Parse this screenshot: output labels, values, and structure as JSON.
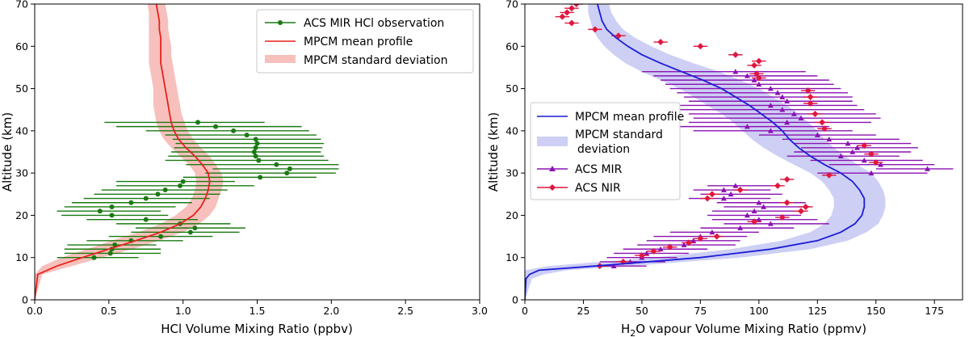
{
  "chart_data": [
    {
      "type": "line",
      "xlabel": "HCl Volume Mixing Ratio (ppbv)",
      "ylabel": "Altitude (km)",
      "xlim": [
        0,
        3.0
      ],
      "ylim": [
        0,
        70
      ],
      "xticks": [
        "0.0",
        "0.5",
        "1.0",
        "1.5",
        "2.0",
        "2.5",
        "3.0"
      ],
      "yticks": [
        "0",
        "10",
        "20",
        "30",
        "40",
        "50",
        "60",
        "70"
      ],
      "legend": {
        "position": "top-right",
        "entries": [
          "ACS MIR HCl observation",
          "MPCM mean profile",
          "MPCM standard deviation"
        ]
      },
      "colors": {
        "observation": "#1a7a12",
        "mean": "#e8201a",
        "band": "#f7c0bd"
      },
      "mean_profile": {
        "y": [
          0,
          6,
          8,
          10,
          12,
          14,
          16,
          18,
          20,
          22,
          24,
          26,
          28,
          30,
          32,
          34,
          36,
          38,
          40,
          42,
          44,
          46,
          48,
          50,
          52,
          54,
          56,
          58,
          60,
          62,
          64,
          66,
          68,
          70
        ],
        "x": [
          0.0,
          0.02,
          0.15,
          0.32,
          0.5,
          0.68,
          0.85,
          0.98,
          1.07,
          1.12,
          1.15,
          1.17,
          1.18,
          1.17,
          1.13,
          1.08,
          1.02,
          0.97,
          0.94,
          0.92,
          0.91,
          0.9,
          0.89,
          0.88,
          0.87,
          0.86,
          0.85,
          0.85,
          0.85,
          0.85,
          0.84,
          0.84,
          0.83,
          0.82
        ]
      },
      "band_low": [
        0.0,
        0.0,
        0.05,
        0.18,
        0.35,
        0.52,
        0.7,
        0.85,
        0.95,
        1.02,
        1.06,
        1.08,
        1.09,
        1.08,
        1.04,
        0.98,
        0.92,
        0.87,
        0.84,
        0.82,
        0.81,
        0.8,
        0.8,
        0.8,
        0.79,
        0.78,
        0.77,
        0.77,
        0.77,
        0.77,
        0.77,
        0.77,
        0.77,
        0.76
      ],
      "band_high": [
        0.0,
        0.05,
        0.25,
        0.45,
        0.66,
        0.84,
        1.0,
        1.11,
        1.18,
        1.22,
        1.24,
        1.26,
        1.27,
        1.26,
        1.22,
        1.18,
        1.12,
        1.07,
        1.03,
        1.01,
        0.99,
        0.98,
        0.97,
        0.96,
        0.95,
        0.94,
        0.93,
        0.92,
        0.92,
        0.91,
        0.9,
        0.9,
        0.89,
        0.88
      ],
      "observations": [
        {
          "y": 42,
          "x": 1.1,
          "lo": 0.47,
          "hi": 1.55
        },
        {
          "y": 41,
          "x": 1.22,
          "lo": 0.55,
          "hi": 1.8
        },
        {
          "y": 40,
          "x": 1.34,
          "lo": 0.75,
          "hi": 1.85
        },
        {
          "y": 39,
          "x": 1.43,
          "lo": 0.88,
          "hi": 1.9
        },
        {
          "y": 38,
          "x": 1.49,
          "lo": 0.93,
          "hi": 1.93
        },
        {
          "y": 37,
          "x": 1.5,
          "lo": 0.95,
          "hi": 1.95
        },
        {
          "y": 36,
          "x": 1.49,
          "lo": 0.94,
          "hi": 1.94
        },
        {
          "y": 35,
          "x": 1.48,
          "lo": 0.92,
          "hi": 1.93
        },
        {
          "y": 34,
          "x": 1.49,
          "lo": 0.9,
          "hi": 1.95
        },
        {
          "y": 33,
          "x": 1.51,
          "lo": 0.88,
          "hi": 1.98
        },
        {
          "y": 32,
          "x": 1.63,
          "lo": 1.02,
          "hi": 2.05
        },
        {
          "y": 31,
          "x": 1.72,
          "lo": 1.2,
          "hi": 2.05
        },
        {
          "y": 30,
          "x": 1.7,
          "lo": 1.15,
          "hi": 2.03
        },
        {
          "y": 29,
          "x": 1.52,
          "lo": 1.0,
          "hi": 1.9
        },
        {
          "y": 28,
          "x": 1.0,
          "lo": 0.55,
          "hi": 1.35
        },
        {
          "y": 27,
          "x": 0.98,
          "lo": 0.55,
          "hi": 1.48
        },
        {
          "y": 26,
          "x": 0.88,
          "lo": 0.45,
          "hi": 1.3
        },
        {
          "y": 25,
          "x": 0.83,
          "lo": 0.4,
          "hi": 1.25
        },
        {
          "y": 24,
          "x": 0.75,
          "lo": 0.33,
          "hi": 1.18
        },
        {
          "y": 23,
          "x": 0.65,
          "lo": 0.25,
          "hi": 1.06
        },
        {
          "y": 22,
          "x": 0.52,
          "lo": 0.2,
          "hi": 0.95
        },
        {
          "y": 21,
          "x": 0.44,
          "lo": 0.15,
          "hi": 0.85
        },
        {
          "y": 20,
          "x": 0.52,
          "lo": 0.18,
          "hi": 0.9
        },
        {
          "y": 19,
          "x": 0.75,
          "lo": 0.35,
          "hi": 1.1
        },
        {
          "y": 18,
          "x": 0.98,
          "lo": 0.55,
          "hi": 1.32
        },
        {
          "y": 17,
          "x": 1.08,
          "lo": 0.68,
          "hi": 1.42
        },
        {
          "y": 16,
          "x": 1.05,
          "lo": 0.65,
          "hi": 1.38
        },
        {
          "y": 15,
          "x": 0.85,
          "lo": 0.5,
          "hi": 1.2
        },
        {
          "y": 14,
          "x": 0.65,
          "lo": 0.35,
          "hi": 1.0
        },
        {
          "y": 13,
          "x": 0.54,
          "lo": 0.22,
          "hi": 0.82
        },
        {
          "y": 12,
          "x": 0.52,
          "lo": 0.2,
          "hi": 0.85
        },
        {
          "y": 11,
          "x": 0.51,
          "lo": 0.2,
          "hi": 0.85
        },
        {
          "y": 10,
          "x": 0.4,
          "lo": 0.15,
          "hi": 0.7
        }
      ]
    },
    {
      "type": "line",
      "xlabel_prefix": "H",
      "xlabel_sub": "2",
      "xlabel_suffix": "O vapour Volume Mixing Ratio (ppmv)",
      "ylabel": "Altitude (km)",
      "xlim": [
        0,
        187
      ],
      "ylim": [
        0,
        70
      ],
      "xticks": [
        "0",
        "25",
        "50",
        "75",
        "100",
        "125",
        "150",
        "175"
      ],
      "yticks": [
        "0",
        "10",
        "20",
        "30",
        "40",
        "50",
        "60",
        "70"
      ],
      "legend": {
        "position": "center-left",
        "entries": [
          "MPCM mean profile",
          "MPCM standard",
          "deviation",
          "ACS MIR",
          "ACS NIR"
        ]
      },
      "colors": {
        "mean": "#1c1cd6",
        "band": "#cdcff5",
        "mir": "#8b12b3",
        "nir": "#e0173f"
      },
      "mean_profile": {
        "y": [
          0,
          5,
          6,
          7,
          8,
          10,
          12,
          14,
          16,
          18,
          20,
          22,
          24,
          26,
          28,
          30,
          32,
          34,
          36,
          38,
          40,
          42,
          44,
          46,
          48,
          50,
          52,
          54,
          56,
          58,
          60,
          62,
          64,
          66,
          68,
          70
        ],
        "x": [
          0,
          0.5,
          2,
          6,
          30,
          75,
          105,
          125,
          135,
          141,
          144,
          145,
          145,
          143,
          140,
          135,
          128,
          122,
          117,
          113,
          110,
          106,
          101,
          96,
          90,
          84,
          76,
          67,
          58,
          50,
          44,
          39,
          35,
          33,
          32,
          31
        ]
      },
      "band_low": [
        0,
        0,
        0,
        0,
        10,
        55,
        88,
        110,
        122,
        128,
        131,
        132,
        132,
        130,
        127,
        122,
        115,
        108,
        102,
        97,
        93,
        89,
        84,
        78,
        72,
        66,
        58,
        50,
        43,
        38,
        34,
        31,
        29,
        28,
        27,
        27
      ],
      "band_high": [
        0,
        3,
        8,
        18,
        45,
        92,
        122,
        138,
        146,
        151,
        153,
        154,
        154,
        153,
        151,
        148,
        142,
        137,
        132,
        128,
        125,
        121,
        117,
        112,
        106,
        100,
        92,
        83,
        72,
        62,
        54,
        47,
        42,
        39,
        37,
        36
      ],
      "mir_observations": [
        {
          "y": 54,
          "x": 90,
          "lo": 50,
          "hi": 120
        },
        {
          "y": 53,
          "x": 95,
          "lo": 55,
          "hi": 125
        },
        {
          "y": 52,
          "x": 98,
          "lo": 58,
          "hi": 130
        },
        {
          "y": 51,
          "x": 100,
          "lo": 60,
          "hi": 132
        },
        {
          "y": 50,
          "x": 105,
          "lo": 62,
          "hi": 135
        },
        {
          "y": 49,
          "x": 108,
          "lo": 65,
          "hi": 138
        },
        {
          "y": 48,
          "x": 110,
          "lo": 68,
          "hi": 140
        },
        {
          "y": 47,
          "x": 112,
          "lo": 70,
          "hi": 140
        },
        {
          "y": 46,
          "x": 105,
          "lo": 62,
          "hi": 142
        },
        {
          "y": 45,
          "x": 110,
          "lo": 65,
          "hi": 145
        },
        {
          "y": 44,
          "x": 115,
          "lo": 70,
          "hi": 150
        },
        {
          "y": 43,
          "x": 118,
          "lo": 72,
          "hi": 152
        },
        {
          "y": 42,
          "x": 112,
          "lo": 70,
          "hi": 148
        },
        {
          "y": 41,
          "x": 95,
          "lo": 65,
          "hi": 130
        },
        {
          "y": 40,
          "x": 105,
          "lo": 72,
          "hi": 140
        },
        {
          "y": 39,
          "x": 125,
          "lo": 100,
          "hi": 150
        },
        {
          "y": 38,
          "x": 130,
          "lo": 110,
          "hi": 160
        },
        {
          "y": 37,
          "x": 138,
          "lo": 115,
          "hi": 165
        },
        {
          "y": 36,
          "x": 142,
          "lo": 118,
          "hi": 168
        },
        {
          "y": 35,
          "x": 140,
          "lo": 115,
          "hi": 165
        },
        {
          "y": 34,
          "x": 135,
          "lo": 112,
          "hi": 160
        },
        {
          "y": 33,
          "x": 145,
          "lo": 122,
          "hi": 170
        },
        {
          "y": 32,
          "x": 152,
          "lo": 130,
          "hi": 175
        },
        {
          "y": 31,
          "x": 172,
          "lo": 150,
          "hi": 183
        },
        {
          "y": 30,
          "x": 148,
          "lo": 125,
          "hi": 172
        },
        {
          "y": 27,
          "x": 90,
          "lo": 78,
          "hi": 108
        },
        {
          "y": 26,
          "x": 85,
          "lo": 72,
          "hi": 105
        },
        {
          "y": 25,
          "x": 88,
          "lo": 75,
          "hi": 110
        },
        {
          "y": 24,
          "x": 85,
          "lo": 70,
          "hi": 105
        },
        {
          "y": 23,
          "x": 100,
          "lo": 82,
          "hi": 120
        },
        {
          "y": 22,
          "x": 102,
          "lo": 85,
          "hi": 122
        },
        {
          "y": 21,
          "x": 98,
          "lo": 80,
          "hi": 120
        },
        {
          "y": 20,
          "x": 95,
          "lo": 78,
          "hi": 118
        },
        {
          "y": 19,
          "x": 100,
          "lo": 80,
          "hi": 125
        },
        {
          "y": 18,
          "x": 105,
          "lo": 85,
          "hi": 130
        },
        {
          "y": 17,
          "x": 92,
          "lo": 75,
          "hi": 115
        },
        {
          "y": 16,
          "x": 80,
          "lo": 62,
          "hi": 100
        },
        {
          "y": 15,
          "x": 75,
          "lo": 55,
          "hi": 95
        },
        {
          "y": 14,
          "x": 72,
          "lo": 52,
          "hi": 92
        },
        {
          "y": 13,
          "x": 68,
          "lo": 48,
          "hi": 90
        },
        {
          "y": 12,
          "x": 58,
          "lo": 42,
          "hi": 78
        },
        {
          "y": 11,
          "x": 52,
          "lo": 38,
          "hi": 70
        },
        {
          "y": 10,
          "x": 50,
          "lo": 35,
          "hi": 65
        },
        {
          "y": 9,
          "x": 45,
          "lo": 32,
          "hi": 60
        },
        {
          "y": 8,
          "x": 38,
          "lo": 28,
          "hi": 52
        }
      ],
      "nir_observations": [
        {
          "y": 70,
          "x": 22,
          "lo": 19,
          "hi": 25
        },
        {
          "y": 69,
          "x": 20,
          "lo": 17,
          "hi": 23
        },
        {
          "y": 68,
          "x": 18,
          "lo": 15,
          "hi": 21
        },
        {
          "y": 67,
          "x": 16,
          "lo": 13,
          "hi": 19
        },
        {
          "y": 65.5,
          "x": 20,
          "lo": 17,
          "hi": 23
        },
        {
          "y": 64,
          "x": 30,
          "lo": 27,
          "hi": 33
        },
        {
          "y": 62.5,
          "x": 40,
          "lo": 37,
          "hi": 43
        },
        {
          "y": 61,
          "x": 58,
          "lo": 55,
          "hi": 61
        },
        {
          "y": 60,
          "x": 75,
          "lo": 72,
          "hi": 78
        },
        {
          "y": 58,
          "x": 90,
          "lo": 87,
          "hi": 93
        },
        {
          "y": 56.5,
          "x": 100,
          "lo": 97,
          "hi": 103
        },
        {
          "y": 55.5,
          "x": 98,
          "lo": 95,
          "hi": 101
        },
        {
          "y": 53.5,
          "x": 99,
          "lo": 96,
          "hi": 102
        },
        {
          "y": 52.5,
          "x": 100,
          "lo": 97,
          "hi": 103
        },
        {
          "y": 49.5,
          "x": 121,
          "lo": 118,
          "hi": 124
        },
        {
          "y": 48,
          "x": 122,
          "lo": 119,
          "hi": 125
        },
        {
          "y": 46.5,
          "x": 122,
          "lo": 119,
          "hi": 125
        },
        {
          "y": 44,
          "x": 124,
          "lo": 121,
          "hi": 127
        },
        {
          "y": 42,
          "x": 127,
          "lo": 124,
          "hi": 130
        },
        {
          "y": 40.5,
          "x": 128,
          "lo": 125,
          "hi": 131
        },
        {
          "y": 36.5,
          "x": 145,
          "lo": 142,
          "hi": 148
        },
        {
          "y": 34.5,
          "x": 148,
          "lo": 145,
          "hi": 151
        },
        {
          "y": 32.5,
          "x": 150,
          "lo": 147,
          "hi": 153
        },
        {
          "y": 29.5,
          "x": 130,
          "lo": 127,
          "hi": 133
        },
        {
          "y": 28.5,
          "x": 112,
          "lo": 109,
          "hi": 115
        },
        {
          "y": 27,
          "x": 108,
          "lo": 105,
          "hi": 111
        },
        {
          "y": 26,
          "x": 92,
          "lo": 89,
          "hi": 95
        },
        {
          "y": 25,
          "x": 80,
          "lo": 77,
          "hi": 83
        },
        {
          "y": 24,
          "x": 78,
          "lo": 75,
          "hi": 81
        },
        {
          "y": 23,
          "x": 112,
          "lo": 109,
          "hi": 115
        },
        {
          "y": 22,
          "x": 120,
          "lo": 117,
          "hi": 123
        },
        {
          "y": 21,
          "x": 118,
          "lo": 115,
          "hi": 121
        },
        {
          "y": 19.5,
          "x": 110,
          "lo": 107,
          "hi": 113
        },
        {
          "y": 18.5,
          "x": 98,
          "lo": 95,
          "hi": 101
        },
        {
          "y": 15,
          "x": 82,
          "lo": 79,
          "hi": 85
        },
        {
          "y": 14.5,
          "x": 75,
          "lo": 72,
          "hi": 78
        },
        {
          "y": 13.5,
          "x": 70,
          "lo": 67,
          "hi": 73
        },
        {
          "y": 12.5,
          "x": 62,
          "lo": 59,
          "hi": 65
        },
        {
          "y": 11.5,
          "x": 55,
          "lo": 52,
          "hi": 58
        },
        {
          "y": 10.5,
          "x": 50,
          "lo": 47,
          "hi": 53
        },
        {
          "y": 9,
          "x": 42,
          "lo": 39,
          "hi": 45
        },
        {
          "y": 8,
          "x": 32,
          "lo": 29,
          "hi": 35
        }
      ]
    }
  ]
}
